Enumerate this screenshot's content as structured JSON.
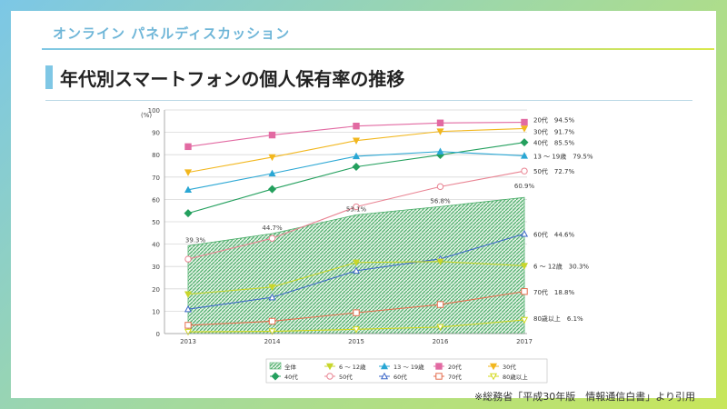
{
  "header": {
    "label": "オンライン パネルディスカッション"
  },
  "page_title": "年代別スマートフォンの個人保有率の推移",
  "source_note": "※総務省「平成30年版　情報通信白書」より引用",
  "colors": {
    "area": "#4cae6a",
    "s_6_12": "#c8d62b",
    "s_13_19": "#2aa7d4",
    "s_20": "#e26aa2",
    "s_30": "#f2b71e",
    "s_40": "#24a05e",
    "s_50": "#e98493",
    "s_60": "#3d68c8",
    "s_70": "#e46d4d",
    "s_80": "#d3d81c"
  },
  "chart_data": {
    "type": "line",
    "unit_label": "(%)",
    "x": [
      "2013",
      "2014",
      "2015",
      "2016",
      "2017"
    ],
    "ylim": [
      0,
      100
    ],
    "yticks": [
      "0",
      "10",
      "20",
      "30",
      "40",
      "50",
      "60",
      "70",
      "80",
      "90",
      "100"
    ],
    "grid": true,
    "area_series": {
      "name": "全体",
      "values": [
        39.3,
        44.7,
        53.1,
        56.8,
        60.9
      ],
      "labels": [
        "39.3%",
        "44.7%",
        "53.1%",
        "56.8%",
        "60.9%"
      ]
    },
    "series": [
      {
        "key": "s_20",
        "name": "20代",
        "marker": "square",
        "values": [
          83.6,
          88.8,
          92.8,
          94.2,
          94.5
        ],
        "end_label": "20代　94.5%"
      },
      {
        "key": "s_30",
        "name": "30代",
        "marker": "down-triangle",
        "values": [
          72.1,
          78.9,
          86.3,
          90.4,
          91.7
        ],
        "end_label": "30代　91.7%"
      },
      {
        "key": "s_40",
        "name": "40代",
        "marker": "diamond",
        "values": [
          53.8,
          64.6,
          74.6,
          79.9,
          85.5
        ],
        "end_label": "40代　85.5%"
      },
      {
        "key": "s_13_19",
        "name": "13 ～ 19歳",
        "marker": "triangle",
        "values": [
          64.3,
          71.6,
          79.3,
          81.4,
          79.5
        ],
        "end_label": "13 ～ 19歳　79.5%"
      },
      {
        "key": "s_50",
        "name": "50代",
        "marker": "circle-open",
        "values": [
          33.3,
          42.6,
          56.7,
          65.7,
          72.7
        ],
        "end_label": "50代　72.7%"
      },
      {
        "key": "s_60",
        "name": "60代",
        "marker": "triangle-open",
        "values": [
          10.9,
          16.2,
          28.1,
          33.4,
          44.6
        ],
        "end_label": "60代　44.6%"
      },
      {
        "key": "s_6_12",
        "name": "6 ～ 12歳",
        "marker": "down-triangle",
        "values": [
          17.6,
          20.8,
          31.8,
          32.2,
          30.3
        ],
        "end_label": "6 ～ 12歳　30.3%"
      },
      {
        "key": "s_70",
        "name": "70代",
        "marker": "square-open",
        "values": [
          3.7,
          5.5,
          9.3,
          13.0,
          18.8
        ],
        "end_label": "70代　18.8%"
      },
      {
        "key": "s_80",
        "name": "80歳以上",
        "marker": "down-triangle-open",
        "values": [
          0.8,
          1.0,
          1.9,
          2.9,
          6.1
        ],
        "end_label": "80歳以上　6.1%"
      }
    ],
    "legend": {
      "row1": [
        {
          "key": "area",
          "label": "全体",
          "marker": "area"
        },
        {
          "key": "s_6_12",
          "label": "6 ～ 12歳",
          "marker": "down-triangle"
        },
        {
          "key": "s_13_19",
          "label": "13 ～ 19歳",
          "marker": "triangle"
        },
        {
          "key": "s_20",
          "label": "20代",
          "marker": "square"
        },
        {
          "key": "s_30",
          "label": "30代",
          "marker": "down-triangle"
        }
      ],
      "row2": [
        {
          "key": "s_40",
          "label": "40代",
          "marker": "diamond"
        },
        {
          "key": "s_50",
          "label": "50代",
          "marker": "circle-open"
        },
        {
          "key": "s_60",
          "label": "60代",
          "marker": "triangle-open"
        },
        {
          "key": "s_70",
          "label": "70代",
          "marker": "square-open"
        },
        {
          "key": "s_80",
          "label": "80歳以上",
          "marker": "down-triangle-open"
        }
      ],
      "placement": "bottom"
    }
  }
}
